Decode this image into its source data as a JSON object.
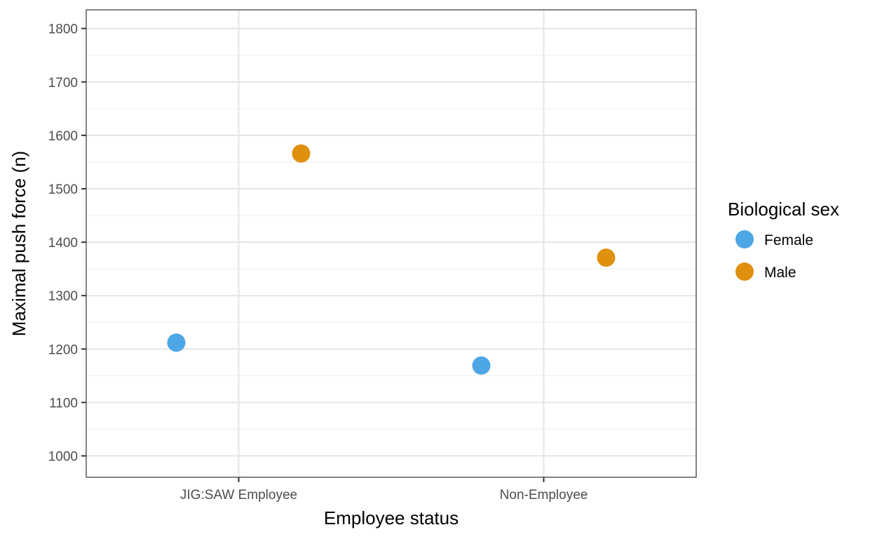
{
  "chart_data": {
    "type": "scatter",
    "xlabel": "Employee status",
    "ylabel": "Maximal push force (n)",
    "categories": [
      "JIG:SAW Employee",
      "Non-Employee"
    ],
    "ylim": [
      960,
      1835
    ],
    "y_ticks": [
      1000,
      1100,
      1200,
      1300,
      1400,
      1500,
      1600,
      1700,
      1800
    ],
    "grid": true,
    "legend": {
      "title": "Biological sex",
      "position": "right"
    },
    "series": [
      {
        "name": "Female",
        "color": "#4da6e5",
        "values": [
          1212,
          1169
        ]
      },
      {
        "name": "Male",
        "color": "#e0900f",
        "values": [
          1566,
          1371
        ]
      }
    ]
  }
}
